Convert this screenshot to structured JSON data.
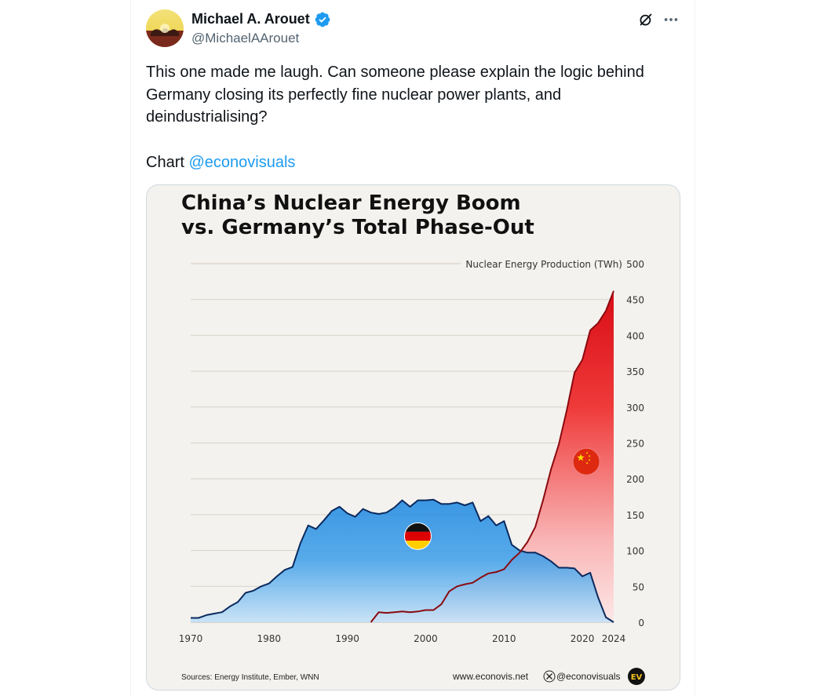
{
  "tweet": {
    "author_name": "Michael A. Arouet",
    "author_handle": "@MichaelAArouet",
    "text_line1": "This one made me laugh. Can someone please explain the logic behind Germany closing its perfectly fine nuclear power plants, and deindustrialising?",
    "text_line2_prefix": "Chart ",
    "text_line2_link": "@econovisuals"
  },
  "colors": {
    "accent": "#1d9bf0",
    "verified": "#1d9bf0",
    "germany_fill": "#2a8ee0",
    "china_fill": "#e0121a"
  },
  "chart_data": {
    "type": "area",
    "title_line1": "China’s Nuclear Energy Boom",
    "title_line2": "vs. Germany’s Total Phase-Out",
    "ylabel": "Nuclear Energy Production (TWh)",
    "ylim": [
      0,
      500
    ],
    "y_ticks": [
      0,
      50,
      100,
      150,
      200,
      250,
      300,
      350,
      400,
      450,
      500
    ],
    "x_ticks": [
      "1970",
      "1980",
      "1990",
      "2000",
      "2010",
      "2020",
      "2024"
    ],
    "grid": true,
    "series": [
      {
        "name": "Germany",
        "x": [
          1970,
          1971,
          1972,
          1973,
          1974,
          1975,
          1976,
          1977,
          1978,
          1979,
          1980,
          1981,
          1982,
          1983,
          1984,
          1985,
          1986,
          1987,
          1988,
          1989,
          1990,
          1991,
          1992,
          1993,
          1994,
          1995,
          1996,
          1997,
          1998,
          1999,
          2000,
          2001,
          2002,
          2003,
          2004,
          2005,
          2006,
          2007,
          2008,
          2009,
          2010,
          2011,
          2012,
          2013,
          2014,
          2015,
          2016,
          2017,
          2018,
          2019,
          2020,
          2021,
          2022,
          2023,
          2024
        ],
        "y": [
          6,
          6,
          10,
          12,
          14,
          22,
          28,
          41,
          44,
          50,
          54,
          64,
          73,
          77,
          110,
          135,
          130,
          142,
          155,
          161,
          152,
          147,
          158,
          153,
          151,
          153,
          160,
          170,
          161,
          170,
          170,
          171,
          165,
          165,
          167,
          163,
          167,
          141,
          148,
          135,
          141,
          108,
          100,
          97,
          97,
          92,
          85,
          76,
          76,
          75,
          64,
          69,
          35,
          7,
          0
        ]
      },
      {
        "name": "China",
        "x": [
          1993,
          1994,
          1995,
          1996,
          1997,
          1998,
          1999,
          2000,
          2001,
          2002,
          2003,
          2004,
          2005,
          2006,
          2007,
          2008,
          2009,
          2010,
          2011,
          2012,
          2013,
          2014,
          2015,
          2016,
          2017,
          2018,
          2019,
          2020,
          2021,
          2022,
          2023,
          2024
        ],
        "y": [
          0,
          14,
          13,
          14,
          15,
          14,
          15,
          17,
          17,
          25,
          43,
          50,
          53,
          55,
          62,
          68,
          70,
          74,
          87,
          97,
          112,
          133,
          171,
          213,
          248,
          295,
          348,
          366,
          407,
          417,
          434,
          462
        ]
      }
    ],
    "sources": "Sources: Energy Institute, Ember, WNN",
    "website": "www.econovis.net",
    "social": "@econovisuals",
    "logo_text": "EV"
  }
}
